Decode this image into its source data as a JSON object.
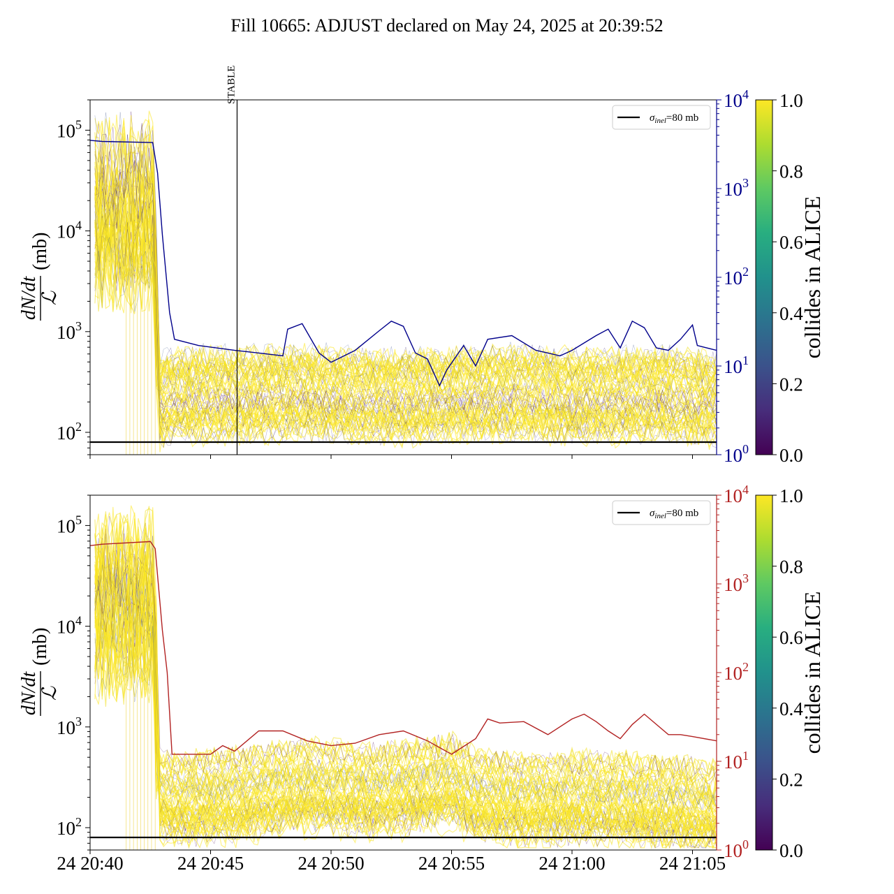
{
  "figure_title": "Fill 10665: ADJUST declared on May 24, 2025 at 20:39:52",
  "ylabel_fraction_num": "dN/dt",
  "ylabel_fraction_den": "ℒ",
  "ylabel_unit": "(mb)",
  "colorbar_label": "collides in ALICE",
  "colorbar_ticks": [
    "0.0",
    "0.2",
    "0.4",
    "0.6",
    "0.8",
    "1.0"
  ],
  "legend_symbol": "σ",
  "legend_subscript": "inel",
  "legend_value": "=80 mb",
  "vline_label": "STABLE",
  "colors": {
    "panel1_secondary": "#00008b",
    "panel2_secondary": "#b22222",
    "reference_line": "#000000"
  },
  "chart_data": [
    {
      "type": "line",
      "name": "panel-top",
      "x_tick_labels": [
        "",
        "",
        "",
        "",
        "",
        ""
      ],
      "x_ticks_minutes": [
        0,
        5,
        10,
        15,
        20,
        25
      ],
      "xlim_minutes": [
        0,
        26
      ],
      "x_origin": "2025-05-24 20:40",
      "y_left": {
        "label": "dN/dt / ℒ (mb)",
        "scale": "log",
        "ylim": [
          60,
          200000
        ],
        "tick_exponents": [
          2,
          3,
          4,
          5
        ]
      },
      "y_right": {
        "scale": "log",
        "ylim": [
          1,
          10000
        ],
        "tick_exponents": [
          0,
          1,
          2,
          3,
          4
        ],
        "color": "#00008b"
      },
      "reference_line_mb": 80,
      "vline": {
        "x_minutes": 6.1,
        "label": "STABLE"
      },
      "bunch_band": {
        "median_points": [
          [
            0.3,
            15000
          ],
          [
            2.6,
            15000
          ],
          [
            2.9,
            200
          ],
          [
            3.5,
            230
          ],
          [
            6,
            230
          ],
          [
            9,
            240
          ],
          [
            12,
            220
          ],
          [
            15,
            230
          ],
          [
            18,
            240
          ],
          [
            21,
            220
          ],
          [
            24,
            230
          ],
          [
            26,
            210
          ]
        ],
        "colormap": "viridis",
        "note": "many bunch traces colored by collides-in-ALICE fraction"
      },
      "secondary_line": [
        [
          0,
          3500
        ],
        [
          0.5,
          3400
        ],
        [
          2.6,
          3300
        ],
        [
          2.8,
          1500
        ],
        [
          3.0,
          300
        ],
        [
          3.3,
          40
        ],
        [
          3.5,
          20
        ],
        [
          4.5,
          17
        ],
        [
          6,
          15
        ],
        [
          7,
          14
        ],
        [
          8,
          13
        ],
        [
          8.2,
          26
        ],
        [
          8.8,
          30
        ],
        [
          9.5,
          14
        ],
        [
          10,
          11
        ],
        [
          11,
          15
        ],
        [
          12,
          25
        ],
        [
          12.5,
          32
        ],
        [
          13,
          28
        ],
        [
          13.5,
          14
        ],
        [
          14,
          12
        ],
        [
          14.5,
          6
        ],
        [
          14.8,
          9
        ],
        [
          15.5,
          17
        ],
        [
          16,
          10
        ],
        [
          16.5,
          20
        ],
        [
          17.5,
          22
        ],
        [
          18.5,
          15
        ],
        [
          19,
          14
        ],
        [
          19.5,
          13
        ],
        [
          20,
          15
        ],
        [
          21,
          22
        ],
        [
          21.5,
          26
        ],
        [
          22,
          16
        ],
        [
          22.5,
          32
        ],
        [
          23,
          27
        ],
        [
          23.5,
          16
        ],
        [
          24,
          15
        ],
        [
          24.5,
          20
        ],
        [
          25,
          29
        ],
        [
          25.2,
          17
        ],
        [
          26,
          15
        ]
      ]
    },
    {
      "type": "line",
      "name": "panel-bottom",
      "x_tick_labels": [
        "24 20:40",
        "24 20:45",
        "24 20:50",
        "24 20:55",
        "24 21:00",
        "24 21:05"
      ],
      "x_ticks_minutes": [
        0,
        5,
        10,
        15,
        20,
        25
      ],
      "xlim_minutes": [
        0,
        26
      ],
      "x_origin": "2025-05-24 20:40",
      "y_left": {
        "label": "dN/dt / ℒ (mb)",
        "scale": "log",
        "ylim": [
          60,
          200000
        ],
        "tick_exponents": [
          2,
          3,
          4,
          5
        ]
      },
      "y_right": {
        "scale": "log",
        "ylim": [
          1,
          10000
        ],
        "tick_exponents": [
          0,
          1,
          2,
          3,
          4
        ],
        "color": "#b22222"
      },
      "reference_line_mb": 80,
      "bunch_band": {
        "median_points": [
          [
            0.3,
            15000
          ],
          [
            2.6,
            15000
          ],
          [
            2.9,
            200
          ],
          [
            3.5,
            180
          ],
          [
            6,
            200
          ],
          [
            9,
            250
          ],
          [
            12,
            220
          ],
          [
            15,
            280
          ],
          [
            16,
            200
          ],
          [
            18,
            180
          ],
          [
            21,
            190
          ],
          [
            24,
            170
          ],
          [
            26,
            150
          ]
        ],
        "colormap": "viridis",
        "note": "many bunch traces colored by collides-in-ALICE fraction"
      },
      "secondary_line": [
        [
          0,
          2700
        ],
        [
          0.5,
          2800
        ],
        [
          2.5,
          3000
        ],
        [
          2.7,
          2500
        ],
        [
          3.0,
          300
        ],
        [
          3.2,
          100
        ],
        [
          3.4,
          12
        ],
        [
          5,
          12
        ],
        [
          5.5,
          15
        ],
        [
          6,
          13
        ],
        [
          7,
          22
        ],
        [
          8,
          22
        ],
        [
          9,
          17
        ],
        [
          10,
          15
        ],
        [
          11,
          16
        ],
        [
          12,
          20
        ],
        [
          13,
          22
        ],
        [
          14,
          17
        ],
        [
          15,
          12
        ],
        [
          16,
          18
        ],
        [
          16.5,
          30
        ],
        [
          17,
          27
        ],
        [
          18,
          28
        ],
        [
          19,
          20
        ],
        [
          20,
          30
        ],
        [
          20.5,
          34
        ],
        [
          21,
          28
        ],
        [
          21.5,
          22
        ],
        [
          22,
          18
        ],
        [
          22.5,
          26
        ],
        [
          23,
          34
        ],
        [
          24,
          20
        ],
        [
          24.5,
          20
        ],
        [
          25,
          19
        ],
        [
          26,
          17
        ]
      ]
    }
  ]
}
